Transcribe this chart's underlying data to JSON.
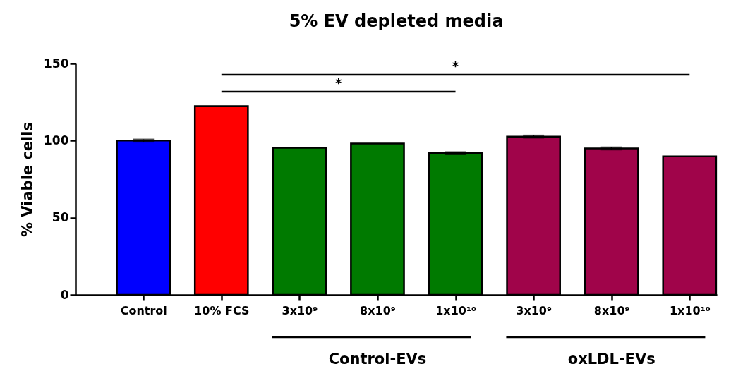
{
  "chart_data": {
    "type": "bar",
    "title": "5% EV depleted media",
    "ylabel": "% Viable cells",
    "categories": [
      "Control",
      "10% FCS",
      "3x10⁹",
      "8x10⁹",
      "1x10¹⁰",
      "3x10⁹",
      "8x10⁹",
      "1x10¹⁰"
    ],
    "values": [
      100,
      122.3,
      95.3,
      98.1,
      91.8,
      102.6,
      94.9,
      89.8
    ],
    "errors": [
      0.8,
      null,
      null,
      null,
      0.8,
      0.8,
      0.8,
      null
    ],
    "colors": [
      "#0000ff",
      "#ff0000",
      "#007a00",
      "#007a00",
      "#007a00",
      "#a0044a",
      "#a0044a",
      "#a0044a"
    ],
    "ylim": [
      0,
      150
    ],
    "yticks": [
      0,
      50,
      100,
      150
    ],
    "grid": false,
    "annotations": [
      "*",
      "*",
      "Control-EVs",
      "oxLDL-EVs"
    ]
  }
}
